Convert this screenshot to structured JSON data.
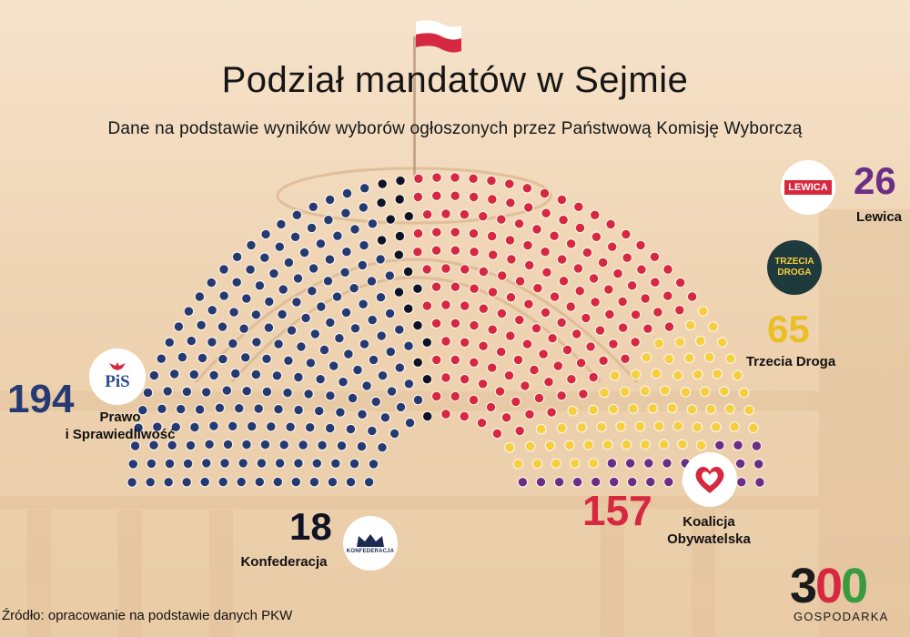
{
  "header": {
    "title": "Podział mandatów w Sejmie",
    "subtitle": "Dane na podstawie wyników wyborów ogłoszonych przez Państwową Komisję Wyborczą"
  },
  "parties": [
    {
      "id": "pis",
      "count": "194",
      "label_line1": "Prawo",
      "label_line2": "i Sprawiedliwość",
      "logo_text": "PiS",
      "color": "#253a73"
    },
    {
      "id": "konf",
      "count": "18",
      "label": "Konfederacja",
      "logo_text": "KONFEDERACJA",
      "color": "#0e1325"
    },
    {
      "id": "ko",
      "count": "157",
      "label_line1": "Koalicja",
      "label_line2": "Obywatelska",
      "color": "#d62840"
    },
    {
      "id": "td",
      "count": "65",
      "label": "Trzecia Droga",
      "logo_text_line1": "TRZECIA",
      "logo_text_line2": "DROGA",
      "color": "#f6cf3f"
    },
    {
      "id": "lewica",
      "count": "26",
      "label": "Lewica",
      "logo_text": "LEWICA",
      "color": "#6a2e86"
    }
  ],
  "chart_data": {
    "type": "parliament",
    "title": "Podział mandatów w Sejmie",
    "total": 460,
    "series": [
      {
        "name": "Prawo i Sprawiedliwość",
        "value": 194,
        "color": "#253a73"
      },
      {
        "name": "Konfederacja",
        "value": 18,
        "color": "#0e1325"
      },
      {
        "name": "Koalicja Obywatelska",
        "value": 157,
        "color": "#d62840"
      },
      {
        "name": "Trzecia Droga",
        "value": 65,
        "color": "#f6cf3f"
      },
      {
        "name": "Lewica",
        "value": 26,
        "color": "#6a2e86"
      }
    ]
  },
  "footer": {
    "source": "Źródło: opracowanie na podstawie danych PKW",
    "brand_d1": "3",
    "brand_d2": "0",
    "brand_d3": "0",
    "brand_name": "GOSPODARKA",
    "brand_colors": [
      "#1b1b1b",
      "#d62840",
      "#3a9a3f"
    ]
  }
}
